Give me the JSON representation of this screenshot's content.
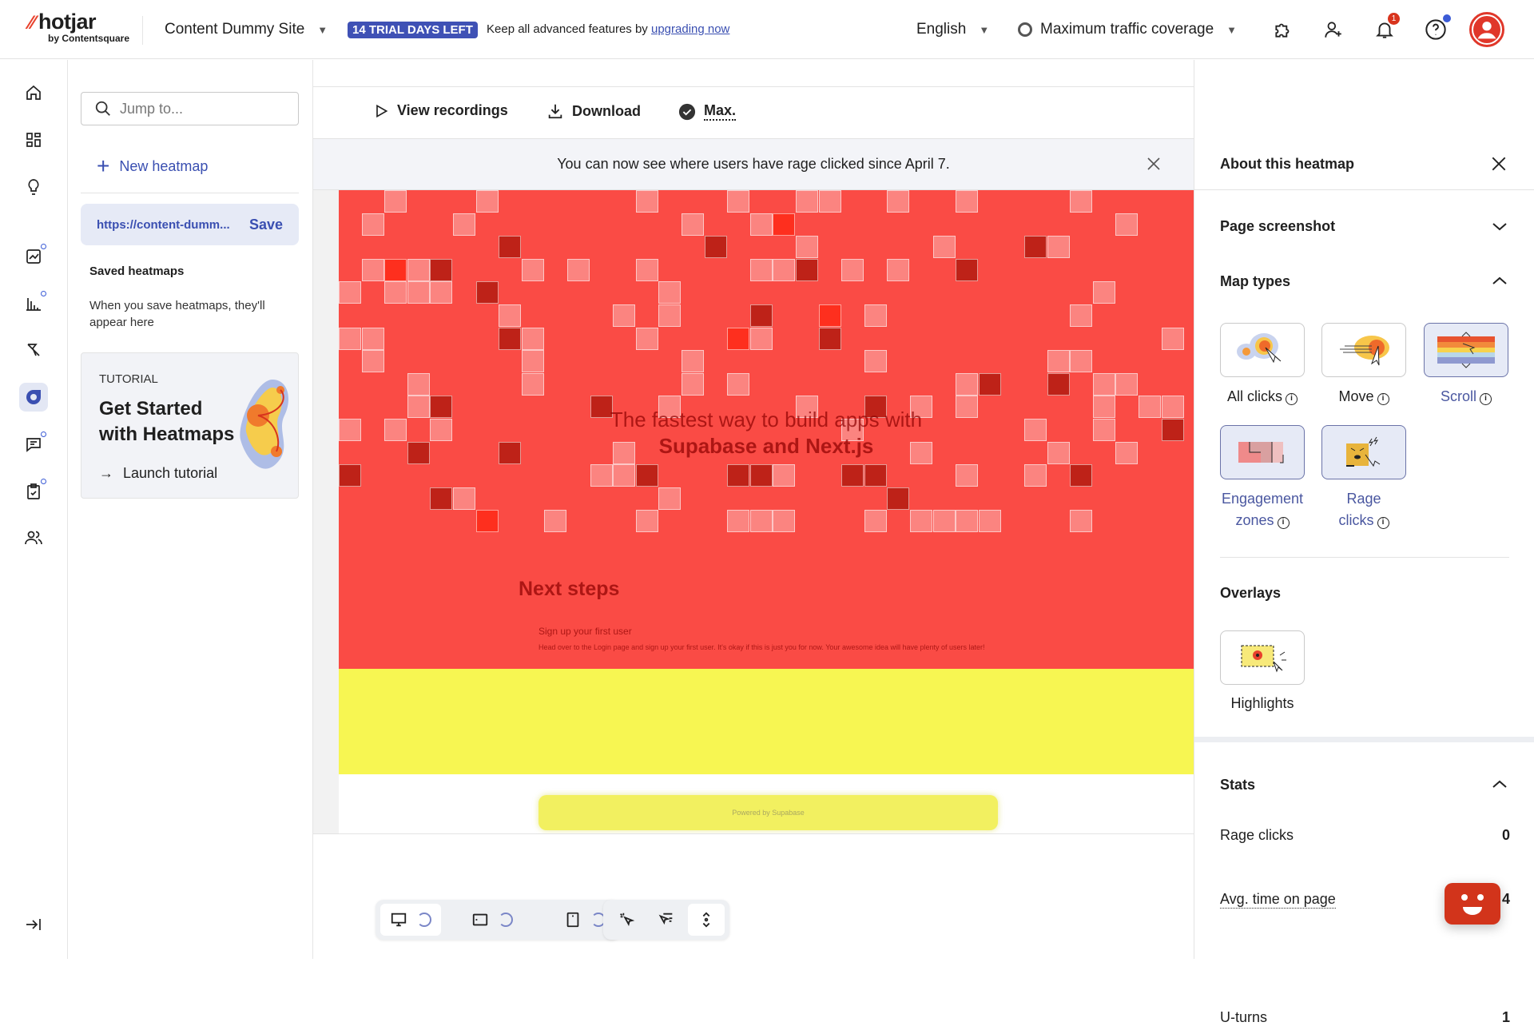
{
  "brand": {
    "name": "hotjar",
    "sub": "by Contentsquare"
  },
  "topbar": {
    "site": "Content Dummy Site",
    "trial_badge": "14 TRIAL DAYS LEFT",
    "upgrade_text": "Keep all advanced features by ",
    "upgrade_link": "upgrading now",
    "language": "English",
    "traffic": "Maximum traffic coverage",
    "notification_count": "1"
  },
  "sidebar": {
    "search_placeholder": "Jump to...",
    "new_heatmap": "New heatmap",
    "url": "https://content-dumm...",
    "save": "Save",
    "saved_title": "Saved heatmaps",
    "saved_desc": "When you save heatmaps, they'll appear here",
    "tutorial": {
      "label": "TUTORIAL",
      "title": "Get Started with Heatmaps",
      "action": "Launch tutorial"
    }
  },
  "toolbar": {
    "view_recordings": "View recordings",
    "download": "Download",
    "max": "Max."
  },
  "banner": {
    "text": "You can now see where users have rage clicked since April 7."
  },
  "page_preview": {
    "headline_1": "The fastest way to build apps with",
    "headline_2": "Supabase and Next.js",
    "next_steps": "Next steps",
    "step_title": "Sign up your first user",
    "step_body": "Head over to the Login page and sign up your first user. It's okay if this is just you for now. Your awesome idea will have plenty of users later!",
    "footer": "Powered by Supabase",
    "colors": {
      "top": "#fa4b45",
      "bottom": "#f7f652"
    }
  },
  "right_panel": {
    "title": "About this heatmap",
    "page_screenshot": "Page screenshot",
    "map_types": "Map types",
    "types": [
      {
        "label": "All clicks",
        "selected": false
      },
      {
        "label": "Move",
        "selected": false
      },
      {
        "label": "Scroll",
        "selected": true
      },
      {
        "label": "Engagement zones",
        "selected": false
      },
      {
        "label": "Rage clicks",
        "selected": false
      }
    ],
    "overlays": "Overlays",
    "highlights": "Highlights",
    "stats": "Stats",
    "stat_rows": [
      {
        "label": "Rage clicks",
        "value": "0"
      },
      {
        "label": "Avg. time on page",
        "value": "4"
      },
      {
        "label": "U-turns",
        "value": "1"
      }
    ]
  },
  "accent": "#3a4fb1"
}
